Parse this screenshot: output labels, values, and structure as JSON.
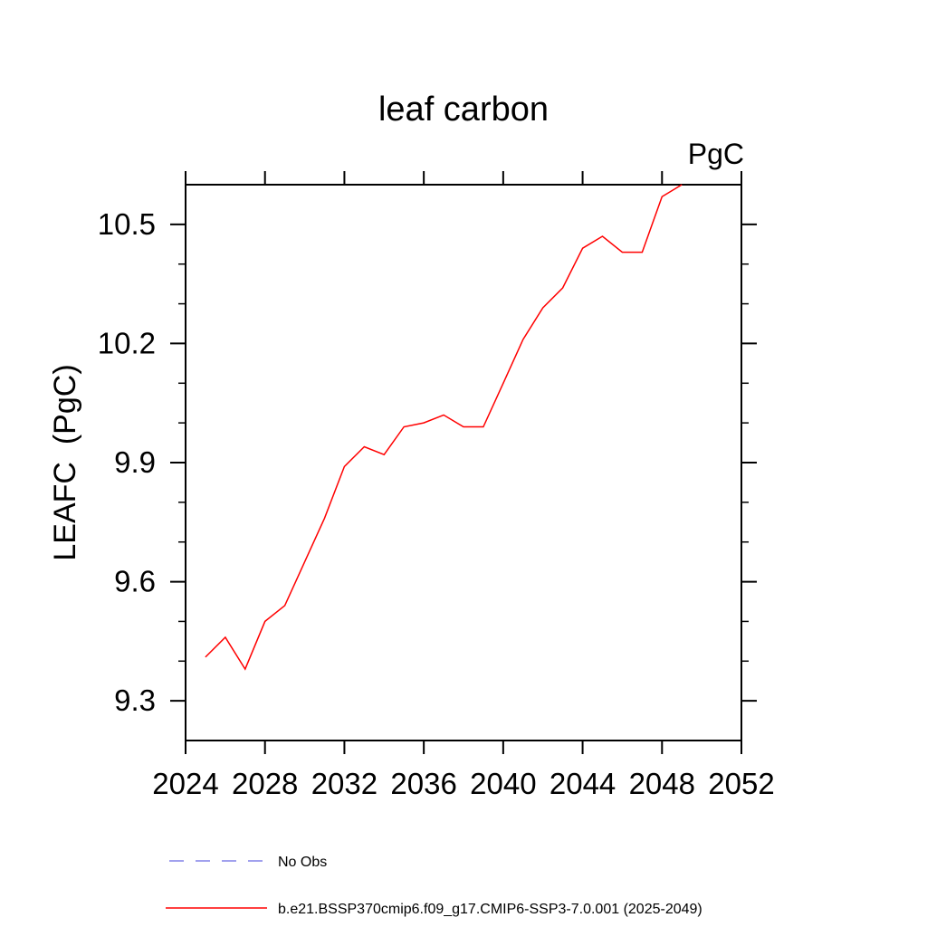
{
  "window": {
    "background_color": "#ffffff",
    "frame_color": "#000000"
  },
  "chart_data": {
    "type": "line",
    "title": "leaf carbon",
    "unit": "PgC",
    "ylabel": "LEAFC  (PgC)",
    "xlabel": "",
    "grid": false,
    "xlim": [
      2024,
      2052
    ],
    "ylim": [
      9.2,
      10.6
    ],
    "x_major_ticks": [
      2024,
      2028,
      2032,
      2036,
      2040,
      2044,
      2048,
      2052
    ],
    "y_major_ticks": [
      9.3,
      9.6,
      9.9,
      10.2,
      10.5
    ],
    "y_minor_tick_step": 0.1,
    "series": [
      {
        "name": "b.e21.BSSP370cmip6.f09_g17.CMIP6-SSP3-7.0.001 (2025-2049)",
        "color": "#ff0000",
        "style": "solid",
        "x": [
          2025,
          2026,
          2027,
          2028,
          2029,
          2030,
          2031,
          2032,
          2033,
          2034,
          2035,
          2036,
          2037,
          2038,
          2039,
          2040,
          2041,
          2042,
          2043,
          2044,
          2045,
          2046,
          2047,
          2048,
          2049
        ],
        "values": [
          9.41,
          9.46,
          9.38,
          9.5,
          9.54,
          9.65,
          9.76,
          9.89,
          9.94,
          9.92,
          9.99,
          10.0,
          10.02,
          9.99,
          9.99,
          10.1,
          10.21,
          10.29,
          10.34,
          10.44,
          10.47,
          10.43,
          10.43,
          10.57,
          10.6
        ]
      }
    ],
    "legend": {
      "position": "bottom-left",
      "entries": [
        {
          "label": "No Obs",
          "color": "#8282e8",
          "style": "dashed"
        },
        {
          "label": "b.e21.BSSP370cmip6.f09_g17.CMIP6-SSP3-7.0.001 (2025-2049)",
          "color": "#ff0000",
          "style": "solid"
        }
      ]
    }
  }
}
